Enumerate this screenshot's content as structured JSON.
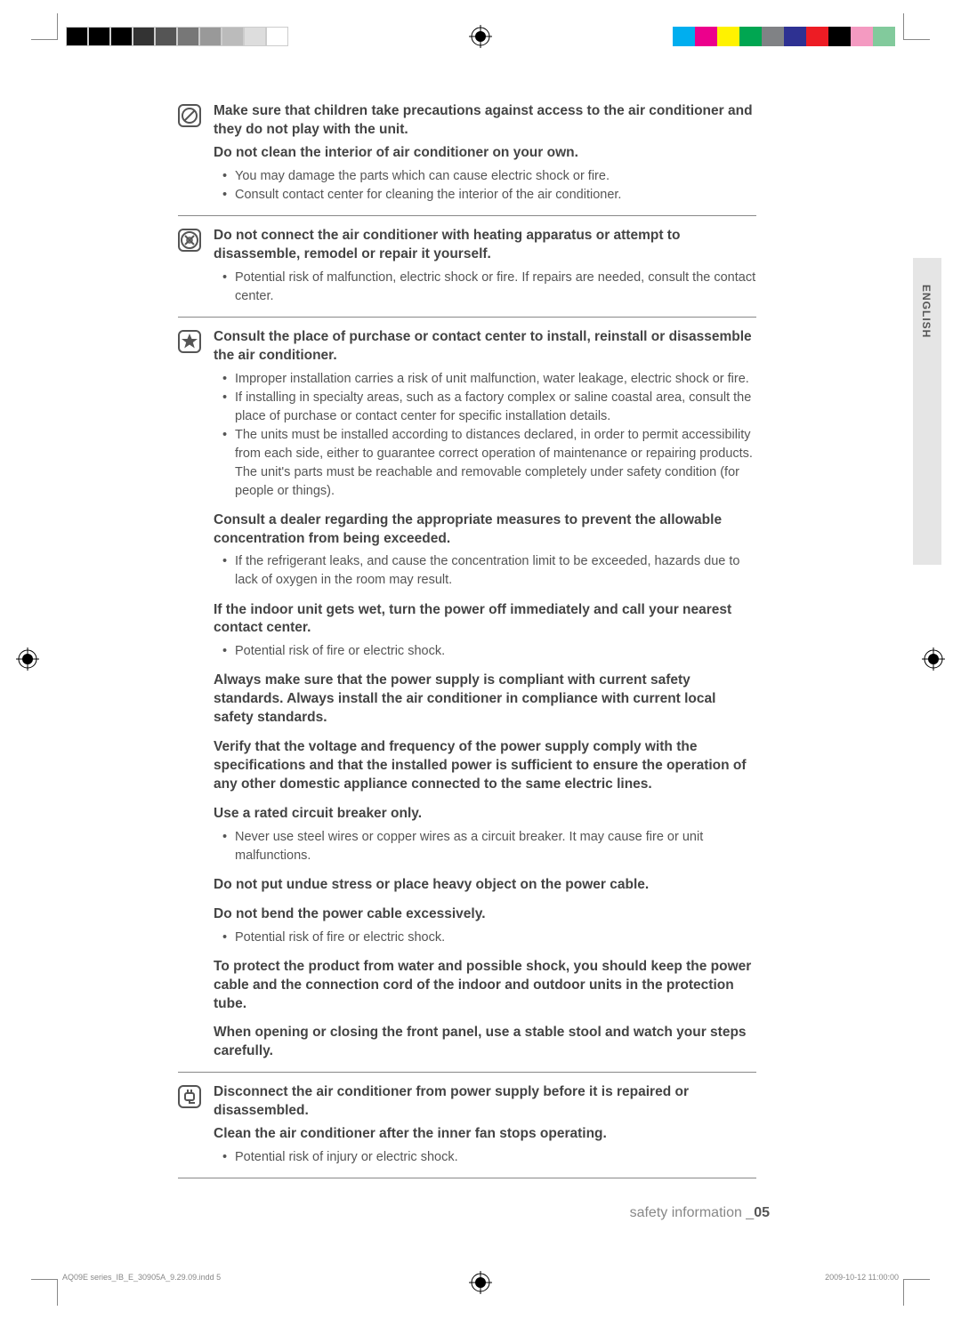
{
  "colorbar_left": [
    "#000000",
    "#000000",
    "#000000",
    "#333333",
    "#555555",
    "#777777",
    "#999999",
    "#bbbbbb",
    "#dddddd",
    "#ffffff"
  ],
  "colorbar_right": [
    "#00aeef",
    "#ec008c",
    "#fff200",
    "#00a651",
    "#808285",
    "#2e3192",
    "#ed1c24",
    "#000000",
    "#f49ac1",
    "#82ca9c"
  ],
  "lang_tab": "ENGLISH",
  "sec1": {
    "h1": "Make sure that children take precautions against access to the air conditioner and they do not play with the unit.",
    "h2": "Do not clean the interior of air conditioner on your own.",
    "b2": [
      "You may damage the parts which can cause electric shock or fire.",
      "Consult contact center for cleaning the interior of the air conditioner."
    ]
  },
  "sec2": {
    "h1": "Do not connect the air conditioner with heating apparatus or attempt to disassemble, remodel or repair it yourself.",
    "b1": [
      "Potential risk of malfunction, electric shock or fire. If repairs are needed, consult the contact center."
    ]
  },
  "sec3": {
    "h1": "Consult the place of purchase or contact center to install, reinstall or disassemble the air conditioner.",
    "b1": [
      "Improper installation carries a risk of unit malfunction, water leakage, electric shock or fire.",
      "If installing in specialty areas, such as a factory complex or saline coastal area, consult the place of purchase or contact center for specific installation details.",
      "The units must be installed according to distances declared, in order to permit accessibility from each side, either to guarantee correct operation of maintenance or repairing products. The unit's parts must be reachable and removable completely under safety condition (for people or things)."
    ],
    "h2": "Consult a dealer regarding the appropriate measures to prevent the allowable concentration from being exceeded.",
    "b2": [
      "If the refrigerant leaks, and cause the concentration limit to be exceeded, hazards due to lack of oxygen in the room may result."
    ],
    "h3": "If the indoor unit gets wet, turn the power off immediately and call your nearest contact center.",
    "b3": [
      "Potential risk of fire or electric shock."
    ],
    "h4": "Always make sure that the power supply is compliant with current safety standards. Always install the air conditioner in compliance with current local safety standards.",
    "h5": "Verify that the voltage and frequency of the power supply comply with the specifications and that the installed power is sufficient to ensure the operation of any other domestic appliance connected to the same electric lines.",
    "h6": "Use a rated circuit breaker only.",
    "b6": [
      "Never use steel wires or copper wires as a circuit breaker. It may cause fire or unit malfunctions."
    ],
    "h7": "Do not put undue stress or place heavy object on the power cable.",
    "h8": "Do not bend the power cable excessively.",
    "b8": [
      "Potential risk of fire or electric shock."
    ],
    "h9": "To protect the product from water and possible shock, you should keep the power cable and the connection cord of the indoor and outdoor units in the protection tube.",
    "h10": "When opening or closing the front panel, use a stable stool and watch your steps carefully."
  },
  "sec4": {
    "h1": "Disconnect the air conditioner from power supply before it is repaired or disassembled.",
    "h2": "Clean the air conditioner after the inner fan stops operating.",
    "b2": [
      "Potential risk of injury or electric shock."
    ]
  },
  "footer": {
    "label": "safety information _",
    "page": "05"
  },
  "indd_left": "AQ09E series_IB_E_30905A_9.29.09.indd   5",
  "indd_right": "2009-10-12   11:00:00"
}
